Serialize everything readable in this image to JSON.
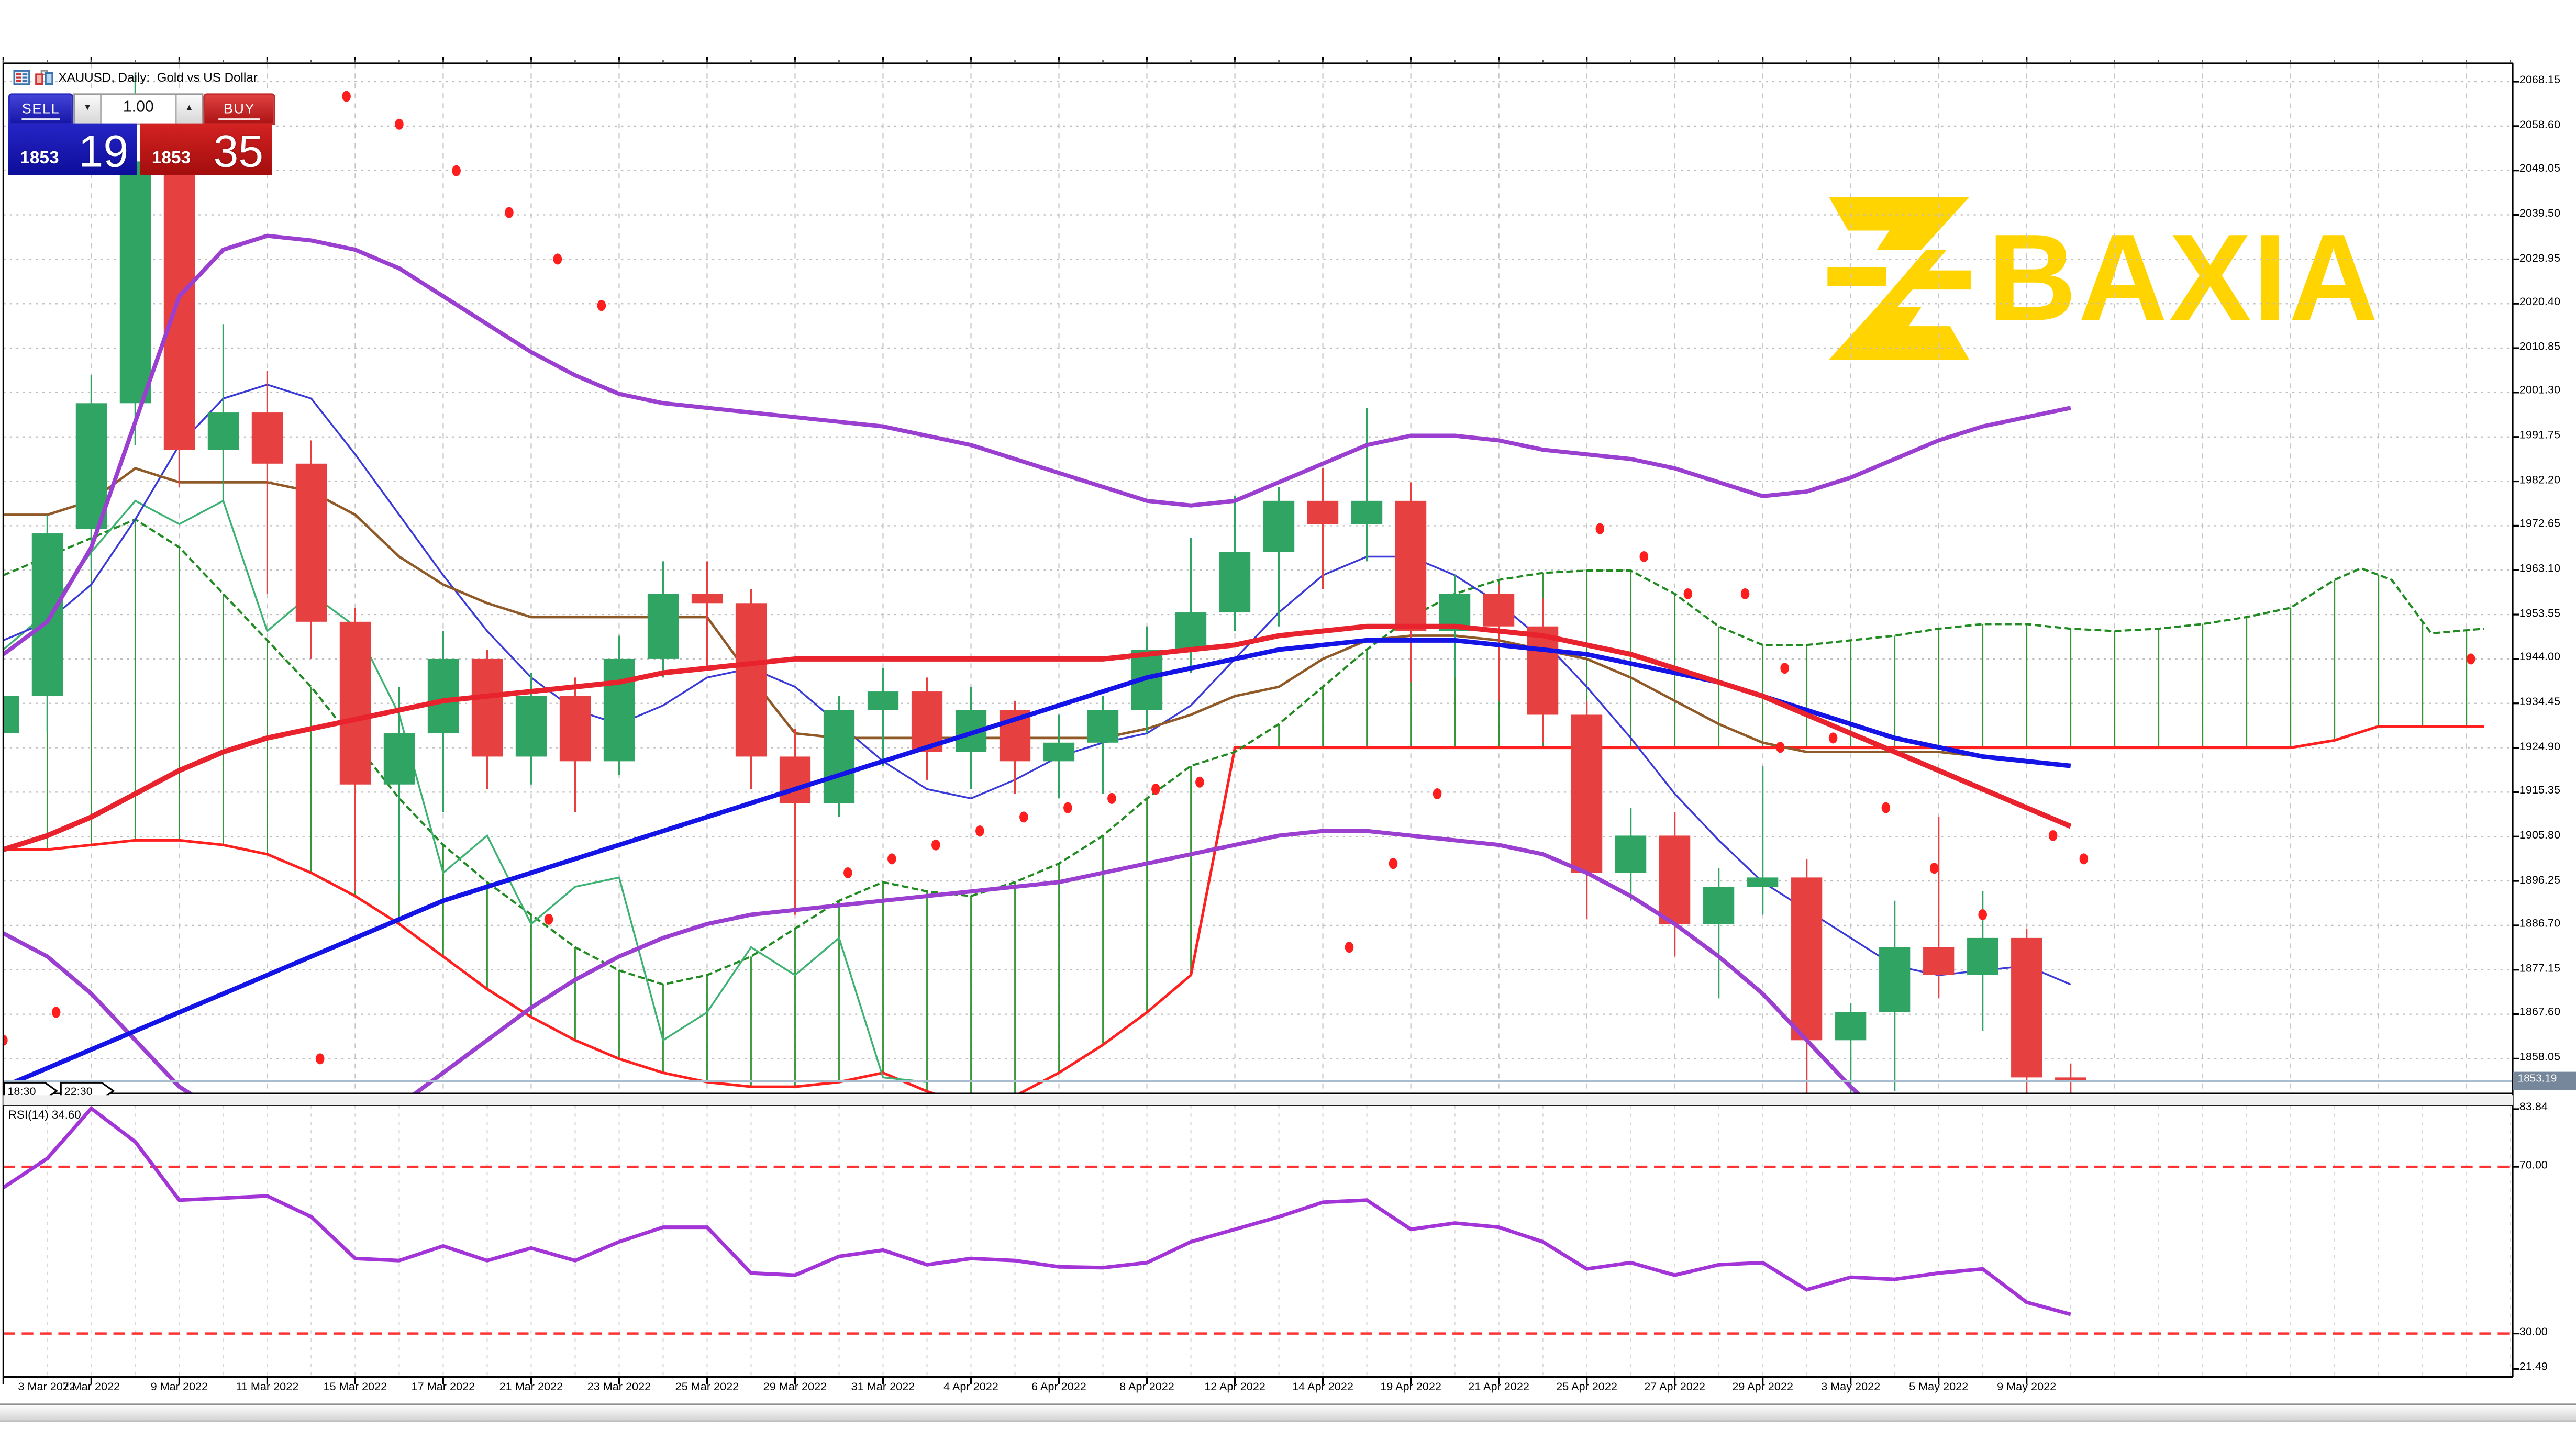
{
  "window": {
    "title": "XAUUSD, Daily:  Gold vs US Dollar"
  },
  "trade_panel": {
    "sell_label": "SELL",
    "buy_label": "BUY",
    "volume": "1.00",
    "sell_price_small": "1853",
    "sell_price_big": "19",
    "buy_price_small": "1853",
    "buy_price_big": "35"
  },
  "watermark": {
    "brand": "BAXIA"
  },
  "session_tags": [
    "18:30",
    "22:30"
  ],
  "colors": {
    "bull": "#2fa463",
    "bear": "#e64040",
    "bollinger": "#9b3fd0",
    "ma_fast": "#e8232d",
    "ma_slow": "#1414e6",
    "kijun": "#8f5a28",
    "tenkan": "#3a3ad8",
    "chikou": "#3db273",
    "senkou_a": "#208b20",
    "senkou_b": "#ff2020",
    "sar": "#ff1e1e",
    "rsi_line": "#a335d8",
    "rsi_level": "#ff3333",
    "price_line": "#a8bdd0",
    "price_tag_bg": "#76879b",
    "brand_yellow": "#ffd400",
    "grid_v": "#c6c6c6",
    "grid_h": "#bdbdbd",
    "grid_rsi": "#d8d8d8"
  },
  "chart_data": {
    "type": "candlestick",
    "symbol": "XAUUSD",
    "timeframe": "Daily",
    "description": "Gold vs US Dollar",
    "price_axis": {
      "labels": [
        "2068.15",
        "2058.60",
        "2049.05",
        "2039.50",
        "2029.95",
        "2020.40",
        "2010.85",
        "2001.30",
        "1991.75",
        "1982.20",
        "1972.65",
        "1963.10",
        "1953.55",
        "1944.00",
        "1934.45",
        "1924.90",
        "1915.35",
        "1905.80",
        "1896.25",
        "1886.70",
        "1877.15",
        "1867.60",
        "1858.05"
      ],
      "top": 2068.15,
      "step": 9.55,
      "current": 1853.19,
      "current_str": "1853.19"
    },
    "time_axis": {
      "labels": [
        "3 Mar 2022",
        "7 Mar 2022",
        "9 Mar 2022",
        "11 Mar 2022",
        "15 Mar 2022",
        "17 Mar 2022",
        "21 Mar 2022",
        "23 Mar 2022",
        "25 Mar 2022",
        "29 Mar 2022",
        "31 Mar 2022",
        "4 Apr 2022",
        "6 Apr 2022",
        "8 Apr 2022",
        "12 Apr 2022",
        "14 Apr 2022",
        "19 Apr 2022",
        "21 Apr 2022",
        "25 Apr 2022",
        "27 Apr 2022",
        "29 Apr 2022",
        "3 May 2022",
        "5 May 2022",
        "9 May 2022"
      ],
      "bars_per_tick": 2
    },
    "candles": [
      [
        1928,
        1938,
        1921,
        1936
      ],
      [
        1936,
        1975,
        1928,
        1971
      ],
      [
        1972,
        2005,
        1963,
        1999
      ],
      [
        1999,
        2070,
        1990,
        2051
      ],
      [
        2051,
        2058,
        1981,
        1989
      ],
      [
        1989,
        2016,
        1978,
        1997
      ],
      [
        1997,
        2006,
        1958,
        1986
      ],
      [
        1986,
        1991,
        1944,
        1952
      ],
      [
        1952,
        1955,
        1894,
        1917
      ],
      [
        1917,
        1938,
        1894,
        1928
      ],
      [
        1928,
        1950,
        1911,
        1944
      ],
      [
        1944,
        1946,
        1916,
        1923
      ],
      [
        1923,
        1941,
        1917,
        1936
      ],
      [
        1936,
        1940,
        1911,
        1922
      ],
      [
        1922,
        1949,
        1919,
        1944
      ],
      [
        1944,
        1965,
        1940,
        1958
      ],
      [
        1958,
        1965,
        1942,
        1956
      ],
      [
        1956,
        1959,
        1916,
        1923
      ],
      [
        1923,
        1929,
        1889,
        1913
      ],
      [
        1913,
        1936,
        1910,
        1933
      ],
      [
        1933,
        1942,
        1921,
        1937
      ],
      [
        1937,
        1940,
        1918,
        1924
      ],
      [
        1924,
        1938,
        1916,
        1933
      ],
      [
        1933,
        1935,
        1915,
        1922
      ],
      [
        1922,
        1932,
        1914,
        1926
      ],
      [
        1926,
        1936,
        1915,
        1933
      ],
      [
        1933,
        1951,
        1928,
        1946
      ],
      [
        1946,
        1970,
        1941,
        1954
      ],
      [
        1954,
        1979,
        1950,
        1967
      ],
      [
        1967,
        1981,
        1951,
        1978
      ],
      [
        1978,
        1985,
        1959,
        1973
      ],
      [
        1973,
        1998,
        1965,
        1978
      ],
      [
        1978,
        1982,
        1939,
        1950
      ],
      [
        1950,
        1962,
        1940,
        1958
      ],
      [
        1958,
        1960,
        1935,
        1951
      ],
      [
        1951,
        1957,
        1926,
        1932
      ],
      [
        1932,
        1935,
        1888,
        1898
      ],
      [
        1898,
        1912,
        1892,
        1906
      ],
      [
        1906,
        1911,
        1880,
        1887
      ],
      [
        1887,
        1899,
        1871,
        1895
      ],
      [
        1895,
        1921,
        1889,
        1897
      ],
      [
        1897,
        1901,
        1850,
        1862
      ],
      [
        1862,
        1870,
        1848,
        1868
      ],
      [
        1868,
        1892,
        1851,
        1882
      ],
      [
        1882,
        1910,
        1871,
        1876
      ],
      [
        1876,
        1894,
        1864,
        1884
      ],
      [
        1884,
        1886,
        1850,
        1854
      ],
      [
        1854,
        1857,
        1850,
        1853
      ]
    ],
    "bollinger_upper": [
      1945,
      1952,
      1968,
      1995,
      2022,
      2032,
      2035,
      2034,
      2032,
      2028,
      2022,
      2016,
      2010,
      2005,
      2001,
      1999,
      1998,
      1997,
      1996,
      1995,
      1994,
      1992,
      1990,
      1987,
      1984,
      1981,
      1978,
      1977,
      1978,
      1982,
      1986,
      1990,
      1992,
      1992,
      1991,
      1989,
      1988,
      1987,
      1985,
      1982,
      1979,
      1980,
      1983,
      1987,
      1991,
      1994,
      1996,
      1998
    ],
    "bollinger_lower": [
      1885,
      1880,
      1872,
      1862,
      1852,
      1846,
      1843,
      1842,
      1844,
      1848,
      1855,
      1862,
      1869,
      1875,
      1880,
      1884,
      1887,
      1889,
      1890,
      1891,
      1892,
      1893,
      1894,
      1895,
      1896,
      1898,
      1900,
      1902,
      1904,
      1906,
      1907,
      1907,
      1906,
      1905,
      1904,
      1902,
      1898,
      1893,
      1887,
      1880,
      1872,
      1862,
      1852,
      1843,
      1836,
      1832,
      1830,
      1829
    ],
    "ma_fast_red": [
      1903,
      1906,
      1910,
      1915,
      1920,
      1924,
      1927,
      1929,
      1931,
      1933,
      1935,
      1936,
      1937,
      1938,
      1939,
      1941,
      1942,
      1943,
      1944,
      1944,
      1944,
      1944,
      1944,
      1944,
      1944,
      1944,
      1945,
      1946,
      1947,
      1949,
      1950,
      1951,
      1951,
      1951,
      1950,
      1949,
      1947,
      1945,
      1942,
      1939,
      1936,
      1932,
      1928,
      1924,
      1920,
      1916,
      1912,
      1908
    ],
    "ma_slow_blue": [
      1852,
      1856,
      1860,
      1864,
      1868,
      1872,
      1876,
      1880,
      1884,
      1888,
      1892,
      1895,
      1898,
      1901,
      1904,
      1907,
      1910,
      1913,
      1916,
      1919,
      1922,
      1925,
      1928,
      1931,
      1934,
      1937,
      1940,
      1942,
      1944,
      1946,
      1947,
      1948,
      1948,
      1948,
      1947,
      1946,
      1945,
      1943,
      1941,
      1939,
      1936,
      1933,
      1930,
      1927,
      1925,
      1923,
      1922,
      1921
    ],
    "kijun_brown": [
      1975,
      1975,
      1978,
      1985,
      1982,
      1982,
      1982,
      1980,
      1975,
      1966,
      1960,
      1956,
      1953,
      1953,
      1953,
      1953,
      1953,
      1940,
      1928,
      1927,
      1927,
      1927,
      1927,
      1927,
      1927,
      1927,
      1929,
      1932,
      1936,
      1938,
      1944,
      1948,
      1949,
      1949,
      1948,
      1946,
      1944,
      1940,
      1935,
      1930,
      1926,
      1924,
      1924,
      1924,
      1924,
      1923,
      1922,
      1921
    ],
    "tenkan_blue": [
      1948,
      1952,
      1960,
      1974,
      1990,
      2000,
      2003,
      2000,
      1988,
      1975,
      1962,
      1950,
      1940,
      1933,
      1930,
      1934,
      1940,
      1942,
      1938,
      1930,
      1922,
      1916,
      1914,
      1918,
      1923,
      1926,
      1928,
      1934,
      1944,
      1954,
      1962,
      1966,
      1966,
      1962,
      1956,
      1948,
      1938,
      1927,
      1915,
      1905,
      1896,
      1890,
      1884,
      1878,
      1876,
      1877,
      1878,
      1874
    ],
    "chikou_green": [
      1946,
      1954,
      1967,
      1978,
      1973,
      1978,
      1950,
      1958,
      1951,
      1932,
      1898,
      1906,
      1887,
      1895,
      1897,
      1862,
      1868,
      1882,
      1876,
      1884,
      1854,
      1853
    ],
    "senkou_a": [
      [
        0,
        1962
      ],
      [
        1,
        1966
      ],
      [
        2,
        1970
      ],
      [
        3,
        1974
      ],
      [
        4,
        1968
      ],
      [
        5,
        1958
      ],
      [
        6,
        1948
      ],
      [
        7,
        1938
      ],
      [
        8,
        1926
      ],
      [
        9,
        1914
      ],
      [
        10,
        1904
      ],
      [
        11,
        1896
      ],
      [
        12,
        1889
      ],
      [
        13,
        1882
      ],
      [
        14,
        1877
      ],
      [
        15,
        1874
      ],
      [
        16,
        1876
      ],
      [
        17,
        1880
      ],
      [
        18,
        1886
      ],
      [
        19,
        1892
      ],
      [
        20,
        1896
      ],
      [
        21,
        1894
      ],
      [
        22,
        1893
      ],
      [
        23,
        1896
      ],
      [
        24,
        1900
      ],
      [
        25,
        1906
      ],
      [
        26,
        1914
      ],
      [
        27,
        1921
      ],
      [
        28,
        1924
      ],
      [
        29,
        1930
      ],
      [
        30,
        1938
      ],
      [
        31,
        1946
      ],
      [
        32,
        1953
      ],
      [
        33,
        1958
      ],
      [
        34,
        1961
      ],
      [
        35,
        1962.5
      ],
      [
        36,
        1963
      ],
      [
        37,
        1963
      ],
      [
        38,
        1958
      ],
      [
        39,
        1951
      ],
      [
        40,
        1947
      ],
      [
        41,
        1947
      ],
      [
        42,
        1948
      ],
      [
        43,
        1949
      ],
      [
        44,
        1950.5
      ],
      [
        45,
        1951.5
      ],
      [
        46,
        1951.5
      ],
      [
        47,
        1950.5
      ],
      [
        48,
        1950
      ],
      [
        49,
        1950.5
      ],
      [
        50,
        1951.5
      ],
      [
        51,
        1953
      ],
      [
        52,
        1955
      ],
      [
        53,
        1961
      ],
      [
        53.6,
        1963.5
      ],
      [
        54.3,
        1961
      ],
      [
        55.2,
        1949.5
      ],
      [
        55.8,
        1950
      ],
      [
        56.4,
        1950.5
      ]
    ],
    "senkou_b": [
      [
        0,
        1903
      ],
      [
        1,
        1903
      ],
      [
        2,
        1904
      ],
      [
        3,
        1905
      ],
      [
        4,
        1905
      ],
      [
        5,
        1904
      ],
      [
        6,
        1902
      ],
      [
        7,
        1898
      ],
      [
        8,
        1893
      ],
      [
        9,
        1887
      ],
      [
        10,
        1880
      ],
      [
        11,
        1873
      ],
      [
        12,
        1867
      ],
      [
        13,
        1862
      ],
      [
        14,
        1858
      ],
      [
        15,
        1855
      ],
      [
        16,
        1853
      ],
      [
        17,
        1852
      ],
      [
        18,
        1852
      ],
      [
        19,
        1853
      ],
      [
        20,
        1855
      ],
      [
        21,
        1851
      ],
      [
        22,
        1848
      ],
      [
        23,
        1850
      ],
      [
        24,
        1855
      ],
      [
        25,
        1861
      ],
      [
        26,
        1868
      ],
      [
        27,
        1876
      ],
      [
        28,
        1924.9
      ],
      [
        29,
        1924.9
      ],
      [
        52,
        1924.9
      ],
      [
        53,
        1926.5
      ],
      [
        54,
        1929.5
      ],
      [
        56.4,
        1929.5
      ]
    ],
    "sar_dots": [
      [
        1.7,
        2064
      ],
      [
        2.4,
        2055
      ],
      [
        7.8,
        2065
      ],
      [
        9.0,
        2059
      ],
      [
        10.3,
        2049
      ],
      [
        11.5,
        2040
      ],
      [
        12.6,
        2030
      ],
      [
        13.6,
        2020
      ],
      [
        0,
        1862
      ],
      [
        1.2,
        1868
      ],
      [
        7.2,
        1858
      ],
      [
        12.4,
        1888
      ],
      [
        19.2,
        1898
      ],
      [
        20.2,
        1901
      ],
      [
        21.2,
        1904
      ],
      [
        22.2,
        1907
      ],
      [
        23.2,
        1910
      ],
      [
        24.2,
        1912
      ],
      [
        25.2,
        1914
      ],
      [
        26.2,
        1916
      ],
      [
        27.2,
        1917.5
      ],
      [
        30.6,
        1882
      ],
      [
        31.6,
        1900
      ],
      [
        32.6,
        1915
      ],
      [
        36.3,
        1972
      ],
      [
        37.3,
        1966
      ],
      [
        38.3,
        1958
      ],
      [
        39.6,
        1958
      ],
      [
        40.5,
        1942
      ],
      [
        41.6,
        1927
      ],
      [
        42.8,
        1912
      ],
      [
        43.9,
        1899
      ],
      [
        45.0,
        1889
      ],
      [
        46.6,
        1906
      ],
      [
        47.3,
        1901
      ],
      [
        40.4,
        1925
      ],
      [
        56.1,
        1944
      ]
    ],
    "rsi": {
      "label": "RSI(14) 34.60",
      "period": 14,
      "value": 34.6,
      "series": [
        65,
        72,
        84,
        76,
        62,
        62.5,
        63,
        58,
        48,
        47.5,
        51,
        47.5,
        50.5,
        47.5,
        52,
        55.5,
        55.5,
        44.5,
        44,
        48.5,
        50,
        46.5,
        48,
        47.5,
        46,
        45.8,
        47,
        52,
        55,
        58,
        61.5,
        62,
        55,
        56.5,
        55.5,
        52,
        45.5,
        47,
        44,
        46.5,
        47,
        40.5,
        43.5,
        43,
        44.5,
        45.5,
        37.5,
        34.6
      ],
      "overbought": 70,
      "oversold": 30,
      "axis": [
        [
          "83.84",
          83.84
        ],
        [
          "70.00",
          70
        ],
        [
          "30.00",
          30
        ],
        [
          "21.49",
          21.49
        ]
      ]
    }
  }
}
